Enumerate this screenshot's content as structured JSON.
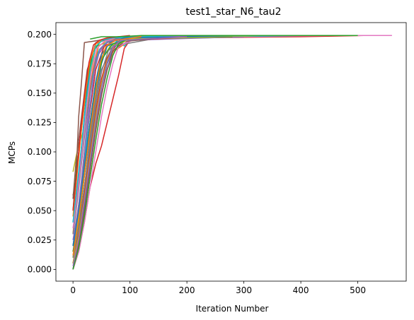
{
  "chart_data": {
    "type": "line",
    "title": "test1_star_N6_tau2",
    "xlabel": "Iteration Number",
    "ylabel": "MCPs",
    "xlim": [
      -30,
      585
    ],
    "ylim": [
      -0.01,
      0.21
    ],
    "xticks": [
      0,
      100,
      200,
      300,
      400,
      500
    ],
    "yticks": [
      0.0,
      0.025,
      0.05,
      0.075,
      0.1,
      0.125,
      0.15,
      0.175,
      0.2
    ],
    "ytick_labels": [
      "0.000",
      "0.025",
      "0.050",
      "0.075",
      "0.100",
      "0.125",
      "0.150",
      "0.175",
      "0.200"
    ],
    "grid": false,
    "legend": "none",
    "series": [
      {
        "color": "#8c564b",
        "x": [
          0,
          5,
          10,
          15,
          20,
          60,
          200,
          400,
          510
        ],
        "y": [
          0.063,
          0.075,
          0.13,
          0.16,
          0.193,
          0.196,
          0.198,
          0.199,
          0.199
        ]
      },
      {
        "color": "#bcbd22",
        "x": [
          0,
          5,
          10,
          20,
          30,
          40,
          80,
          200,
          450
        ],
        "y": [
          0.083,
          0.095,
          0.106,
          0.12,
          0.165,
          0.19,
          0.196,
          0.198,
          0.199
        ]
      },
      {
        "color": "#d62728",
        "x": [
          0,
          10,
          20,
          30,
          40,
          50,
          60,
          70,
          80,
          90,
          100,
          200,
          400,
          510
        ],
        "y": [
          0.0,
          0.015,
          0.04,
          0.07,
          0.09,
          0.105,
          0.125,
          0.145,
          0.165,
          0.188,
          0.195,
          0.197,
          0.198,
          0.199
        ]
      },
      {
        "color": "#e377c2",
        "x": [
          0,
          20,
          40,
          60,
          80,
          120,
          300,
          450,
          560
        ],
        "y": [
          0.005,
          0.05,
          0.12,
          0.175,
          0.195,
          0.197,
          0.198,
          0.199,
          0.199
        ]
      },
      {
        "color": "#17becf",
        "x": [
          0,
          10,
          20,
          30,
          40,
          50,
          60,
          70,
          80,
          90,
          100,
          150
        ],
        "y": [
          0.0,
          0.02,
          0.06,
          0.1,
          0.13,
          0.155,
          0.175,
          0.19,
          0.196,
          0.19,
          0.195,
          0.198
        ]
      },
      {
        "color": "#2ca02c",
        "x": [
          0,
          10,
          20,
          30,
          40,
          50,
          60,
          80,
          200
        ],
        "y": [
          0.02,
          0.05,
          0.09,
          0.125,
          0.16,
          0.18,
          0.19,
          0.197,
          0.198
        ]
      },
      {
        "color": "#ff7f0e",
        "x": [
          0,
          5,
          15,
          25,
          35,
          45,
          60,
          100,
          300
        ],
        "y": [
          0.03,
          0.06,
          0.1,
          0.14,
          0.17,
          0.19,
          0.195,
          0.197,
          0.199
        ]
      },
      {
        "color": "#1f77b4",
        "x": [
          0,
          10,
          20,
          30,
          40,
          50,
          60,
          90,
          250
        ],
        "y": [
          0.01,
          0.04,
          0.08,
          0.115,
          0.15,
          0.175,
          0.19,
          0.196,
          0.198
        ]
      },
      {
        "color": "#9467bd",
        "x": [
          0,
          10,
          20,
          30,
          40,
          60,
          90,
          300
        ],
        "y": [
          0.015,
          0.05,
          0.1,
          0.15,
          0.18,
          0.193,
          0.197,
          0.199
        ]
      },
      {
        "color": "#7f7f7f",
        "x": [
          0,
          10,
          20,
          30,
          40,
          50,
          70,
          150
        ],
        "y": [
          0.005,
          0.035,
          0.07,
          0.11,
          0.145,
          0.17,
          0.19,
          0.197
        ]
      },
      {
        "color": "#1f77b4",
        "x": [
          0,
          8,
          16,
          24,
          32,
          40,
          60,
          120
        ],
        "y": [
          0.04,
          0.07,
          0.11,
          0.15,
          0.18,
          0.193,
          0.196,
          0.198
        ]
      },
      {
        "color": "#ff7f0e",
        "x": [
          0,
          10,
          20,
          30,
          40,
          50,
          60,
          70,
          100,
          250
        ],
        "y": [
          0.0,
          0.02,
          0.05,
          0.085,
          0.12,
          0.15,
          0.17,
          0.185,
          0.195,
          0.198
        ]
      },
      {
        "color": "#2ca02c",
        "x": [
          0,
          5,
          15,
          25,
          35,
          50,
          80,
          200
        ],
        "y": [
          0.05,
          0.08,
          0.12,
          0.16,
          0.185,
          0.195,
          0.197,
          0.199
        ]
      },
      {
        "color": "#d62728",
        "x": [
          0,
          10,
          20,
          30,
          40,
          55,
          80,
          150
        ],
        "y": [
          0.02,
          0.055,
          0.095,
          0.135,
          0.17,
          0.19,
          0.196,
          0.198
        ]
      },
      {
        "color": "#9467bd",
        "x": [
          0,
          10,
          20,
          30,
          45,
          60,
          75,
          100,
          300
        ],
        "y": [
          0.0,
          0.03,
          0.065,
          0.1,
          0.14,
          0.17,
          0.188,
          0.195,
          0.198
        ]
      },
      {
        "color": "#8c564b",
        "x": [
          0,
          5,
          15,
          25,
          40,
          60,
          100
        ],
        "y": [
          0.06,
          0.09,
          0.13,
          0.17,
          0.192,
          0.196,
          0.198
        ]
      },
      {
        "color": "#e377c2",
        "x": [
          0,
          10,
          20,
          30,
          40,
          50,
          60,
          70,
          80,
          110,
          350
        ],
        "y": [
          0.0,
          0.015,
          0.04,
          0.07,
          0.1,
          0.13,
          0.155,
          0.175,
          0.19,
          0.196,
          0.199
        ]
      },
      {
        "color": "#7f7f7f",
        "x": [
          0,
          8,
          16,
          24,
          34,
          44,
          60,
          90,
          200
        ],
        "y": [
          0.03,
          0.06,
          0.095,
          0.13,
          0.165,
          0.185,
          0.193,
          0.197,
          0.199
        ]
      },
      {
        "color": "#bcbd22",
        "x": [
          0,
          10,
          20,
          30,
          40,
          50,
          65,
          90,
          180
        ],
        "y": [
          0.01,
          0.045,
          0.085,
          0.12,
          0.155,
          0.178,
          0.19,
          0.196,
          0.198
        ]
      },
      {
        "color": "#17becf",
        "x": [
          0,
          10,
          20,
          28,
          36,
          46,
          60,
          100,
          400
        ],
        "y": [
          0.02,
          0.05,
          0.09,
          0.13,
          0.165,
          0.187,
          0.194,
          0.197,
          0.199
        ]
      },
      {
        "color": "#1f77b4",
        "x": [
          0,
          10,
          20,
          30,
          40,
          50,
          60,
          70,
          85,
          120
        ],
        "y": [
          0.0,
          0.025,
          0.055,
          0.09,
          0.125,
          0.155,
          0.175,
          0.188,
          0.194,
          0.197
        ]
      },
      {
        "color": "#2ca02c",
        "x": [
          0,
          10,
          20,
          30,
          40,
          52,
          70,
          100,
          280
        ],
        "y": [
          0.015,
          0.04,
          0.08,
          0.12,
          0.155,
          0.18,
          0.192,
          0.196,
          0.198
        ]
      },
      {
        "color": "#ff7f0e",
        "x": [
          0,
          6,
          14,
          22,
          30,
          40,
          55,
          80,
          150
        ],
        "y": [
          0.045,
          0.075,
          0.115,
          0.15,
          0.178,
          0.192,
          0.196,
          0.198,
          0.199
        ]
      },
      {
        "color": "#d62728",
        "x": [
          0,
          10,
          20,
          30,
          40,
          50,
          60,
          75,
          95,
          220
        ],
        "y": [
          0.005,
          0.03,
          0.065,
          0.1,
          0.135,
          0.162,
          0.18,
          0.191,
          0.195,
          0.198
        ]
      },
      {
        "color": "#9467bd",
        "x": [
          0,
          10,
          20,
          30,
          38,
          48,
          62,
          90,
          250
        ],
        "y": [
          0.025,
          0.055,
          0.1,
          0.14,
          0.17,
          0.188,
          0.194,
          0.197,
          0.199
        ]
      },
      {
        "color": "#8c564b",
        "x": [
          0,
          10,
          20,
          30,
          40,
          50,
          60,
          70,
          90,
          160
        ],
        "y": [
          0.0,
          0.022,
          0.05,
          0.085,
          0.118,
          0.148,
          0.17,
          0.186,
          0.194,
          0.197
        ]
      },
      {
        "color": "#e377c2",
        "x": [
          0,
          8,
          16,
          24,
          32,
          42,
          55,
          75,
          200
        ],
        "y": [
          0.035,
          0.065,
          0.1,
          0.138,
          0.168,
          0.188,
          0.194,
          0.197,
          0.199
        ]
      },
      {
        "color": "#7f7f7f",
        "x": [
          0,
          10,
          20,
          30,
          40,
          50,
          62,
          80,
          140
        ],
        "y": [
          0.01,
          0.035,
          0.07,
          0.105,
          0.14,
          0.168,
          0.186,
          0.194,
          0.197
        ]
      },
      {
        "color": "#bcbd22",
        "x": [
          0,
          10,
          20,
          30,
          40,
          50,
          60,
          72,
          100,
          330
        ],
        "y": [
          0.005,
          0.028,
          0.06,
          0.095,
          0.13,
          0.158,
          0.178,
          0.19,
          0.196,
          0.199
        ]
      },
      {
        "color": "#17becf",
        "x": [
          0,
          7,
          15,
          23,
          31,
          40,
          52,
          70,
          180
        ],
        "y": [
          0.04,
          0.07,
          0.105,
          0.142,
          0.172,
          0.19,
          0.195,
          0.197,
          0.199
        ]
      },
      {
        "color": "#2ca02c",
        "x": [
          0,
          10,
          20,
          30,
          40,
          50,
          60,
          70,
          80,
          100
        ],
        "y": [
          0.0,
          0.018,
          0.045,
          0.078,
          0.11,
          0.14,
          0.163,
          0.182,
          0.192,
          0.197
        ]
      },
      {
        "color": "#1f77b4",
        "x": [
          0,
          10,
          20,
          30,
          40,
          50,
          65,
          90,
          300
        ],
        "y": [
          0.02,
          0.05,
          0.088,
          0.125,
          0.16,
          0.183,
          0.193,
          0.197,
          0.199
        ]
      },
      {
        "color": "#ff7f0e",
        "x": [
          0,
          10,
          20,
          30,
          40,
          48,
          58,
          75,
          120
        ],
        "y": [
          0.012,
          0.042,
          0.08,
          0.118,
          0.152,
          0.176,
          0.19,
          0.195,
          0.198
        ]
      },
      {
        "color": "#d62728",
        "x": [
          0,
          6,
          12,
          20,
          28,
          36,
          46,
          60,
          100
        ],
        "y": [
          0.05,
          0.08,
          0.11,
          0.148,
          0.176,
          0.191,
          0.195,
          0.197,
          0.199
        ]
      },
      {
        "color": "#9467bd",
        "x": [
          0,
          10,
          20,
          30,
          40,
          50,
          60,
          70,
          85,
          200
        ],
        "y": [
          0.003,
          0.025,
          0.058,
          0.092,
          0.126,
          0.155,
          0.176,
          0.189,
          0.195,
          0.198
        ]
      },
      {
        "color": "#2ca02c",
        "x": [
          30,
          50,
          80,
          120,
          200,
          350,
          500
        ],
        "y": [
          0.196,
          0.198,
          0.198,
          0.199,
          0.199,
          0.199,
          0.199
        ]
      }
    ]
  }
}
